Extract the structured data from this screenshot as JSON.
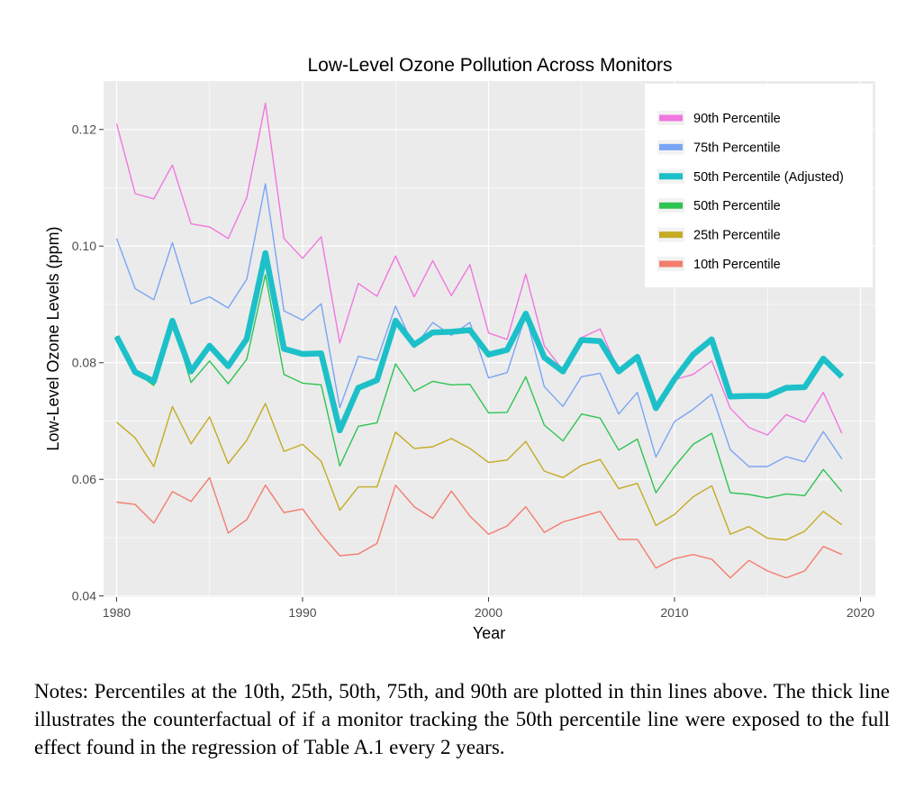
{
  "chart_data": {
    "type": "line",
    "title": "Low-Level Ozone Pollution Across Monitors",
    "xlabel": "Year",
    "ylabel": "Low-Level Ozone Levels (ppm)",
    "xlim": [
      1979.3,
      2020.8
    ],
    "ylim": [
      0.0398,
      0.1283
    ],
    "x_ticks": [
      1980,
      1990,
      2000,
      2010,
      2020
    ],
    "y_ticks": [
      0.04,
      0.06,
      0.08,
      0.1,
      0.12
    ],
    "y_tick_labels": [
      "0.04",
      "0.06",
      "0.08",
      "0.10",
      "0.12"
    ],
    "grid": true,
    "legend_position": "top-right",
    "background_color": "#ebebeb",
    "x": [
      1980,
      1981,
      1982,
      1983,
      1984,
      1985,
      1986,
      1987,
      1988,
      1989,
      1990,
      1991,
      1992,
      1993,
      1994,
      1995,
      1996,
      1997,
      1998,
      1999,
      2000,
      2001,
      2002,
      2003,
      2004,
      2005,
      2006,
      2007,
      2008,
      2009,
      2010,
      2011,
      2012,
      2013,
      2014,
      2015,
      2016,
      2017,
      2018,
      2019
    ],
    "series": [
      {
        "name": "90th Percentile",
        "color": "#f176e0",
        "width": 1.4,
        "values": [
          0.121,
          0.109,
          0.1081,
          0.1139,
          0.1038,
          0.1033,
          0.1013,
          0.1083,
          0.1245,
          0.1013,
          0.0979,
          0.1016,
          0.0834,
          0.0936,
          0.0914,
          0.0983,
          0.0913,
          0.0975,
          0.0915,
          0.0968,
          0.0851,
          0.084,
          0.0952,
          0.0829,
          0.0787,
          0.0843,
          0.0858,
          0.0786,
          0.0812,
          0.0722,
          0.0771,
          0.078,
          0.0803,
          0.0722,
          0.0689,
          0.0676,
          0.0711,
          0.0698,
          0.0749,
          0.0679
        ]
      },
      {
        "name": "75th Percentile",
        "color": "#7aa5f5",
        "width": 1.4,
        "values": [
          0.1013,
          0.0927,
          0.0908,
          0.1006,
          0.0901,
          0.0913,
          0.0894,
          0.0943,
          0.1107,
          0.0889,
          0.0873,
          0.0901,
          0.0723,
          0.0811,
          0.0804,
          0.0897,
          0.0826,
          0.0869,
          0.0847,
          0.0869,
          0.0774,
          0.0783,
          0.0882,
          0.0759,
          0.0725,
          0.0776,
          0.0782,
          0.0712,
          0.0749,
          0.0638,
          0.0699,
          0.072,
          0.0746,
          0.0651,
          0.0622,
          0.0622,
          0.0639,
          0.063,
          0.0682,
          0.0635
        ]
      },
      {
        "name": "50th Percentile (Adjusted)",
        "color": "#1dc0c8",
        "width": 6.5,
        "values": [
          0.0845,
          0.0784,
          0.0768,
          0.0872,
          0.0785,
          0.0829,
          0.0794,
          0.0841,
          0.0988,
          0.0824,
          0.0815,
          0.0816,
          0.0684,
          0.0757,
          0.077,
          0.0872,
          0.0831,
          0.0852,
          0.0853,
          0.0856,
          0.0814,
          0.0822,
          0.0884,
          0.0809,
          0.0785,
          0.0839,
          0.0837,
          0.0785,
          0.081,
          0.0722,
          0.0772,
          0.0814,
          0.084,
          0.0742,
          0.0743,
          0.0743,
          0.0757,
          0.0758,
          0.0807,
          0.0776
        ]
      },
      {
        "name": "50th Percentile",
        "color": "#2ec452",
        "width": 1.4,
        "values": [
          0.0846,
          0.0784,
          0.0761,
          0.0872,
          0.0766,
          0.0803,
          0.0764,
          0.0806,
          0.0951,
          0.078,
          0.0765,
          0.0762,
          0.0623,
          0.0691,
          0.0697,
          0.0798,
          0.0751,
          0.0768,
          0.0762,
          0.0763,
          0.0714,
          0.0715,
          0.0776,
          0.0693,
          0.0666,
          0.0712,
          0.0705,
          0.065,
          0.0669,
          0.0577,
          0.0622,
          0.066,
          0.0679,
          0.0577,
          0.0574,
          0.0568,
          0.0575,
          0.0572,
          0.0617,
          0.0579
        ]
      },
      {
        "name": "25th Percentile",
        "color": "#c4ab24",
        "width": 1.4,
        "values": [
          0.0698,
          0.0671,
          0.0622,
          0.0725,
          0.0661,
          0.0707,
          0.0627,
          0.0667,
          0.073,
          0.0648,
          0.066,
          0.0631,
          0.0547,
          0.0587,
          0.0587,
          0.0681,
          0.0653,
          0.0656,
          0.067,
          0.0653,
          0.0629,
          0.0633,
          0.0665,
          0.0614,
          0.0603,
          0.0624,
          0.0634,
          0.0584,
          0.0593,
          0.0521,
          0.054,
          0.057,
          0.0589,
          0.0506,
          0.0519,
          0.0499,
          0.0496,
          0.0511,
          0.0545,
          0.0522
        ]
      },
      {
        "name": "10th Percentile",
        "color": "#f47c6e",
        "width": 1.4,
        "values": [
          0.0561,
          0.0557,
          0.0525,
          0.0579,
          0.0562,
          0.0603,
          0.0508,
          0.0531,
          0.059,
          0.0543,
          0.0549,
          0.0506,
          0.0469,
          0.0472,
          0.049,
          0.059,
          0.0553,
          0.0533,
          0.058,
          0.0537,
          0.0506,
          0.052,
          0.0553,
          0.0509,
          0.0527,
          0.0536,
          0.0545,
          0.0497,
          0.0497,
          0.0448,
          0.0464,
          0.0471,
          0.0463,
          0.0431,
          0.0461,
          0.0443,
          0.0431,
          0.0443,
          0.0485,
          0.0471
        ]
      }
    ],
    "legend_order": [
      0,
      1,
      2,
      3,
      4,
      5
    ]
  },
  "notes": "Notes: Percentiles at the 10th, 25th, 50th, 75th, and 90th are plotted in thin lines above. The thick line illustrates the counterfactual of if a monitor tracking the 50th percentile line were exposed to the full effect found in the regression of Table A.1 every 2 years."
}
